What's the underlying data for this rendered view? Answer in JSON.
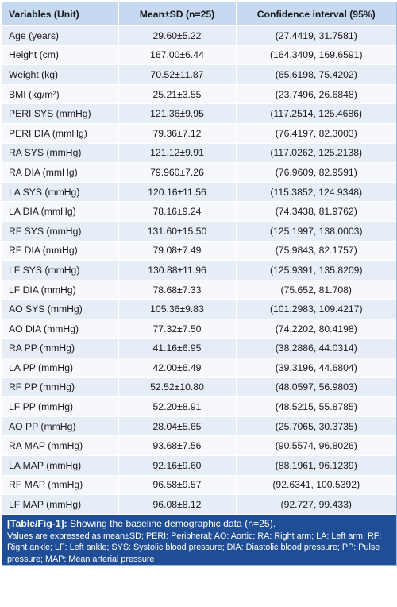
{
  "table": {
    "headers": [
      "Variables (Unit)",
      "Mean±SD (n=25)",
      "Confidence interval (95%)"
    ],
    "rows": [
      [
        "Age (years)",
        "29.60±5.22",
        "(27.4419, 31.7581)"
      ],
      [
        "Height (cm)",
        "167.00±6.44",
        "(164.3409, 169.6591)"
      ],
      [
        "Weight (kg)",
        "70.52±11.87",
        "(65.6198, 75.4202)"
      ],
      [
        "BMI (kg/m²)",
        "25.21±3.55",
        "(23.7496, 26.6848)"
      ],
      [
        "PERI SYS (mmHg)",
        "121.36±9.95",
        "(117.2514, 125.4686)"
      ],
      [
        "PERI DIA (mmHg)",
        "79.36±7.12",
        "(76.4197, 82.3003)"
      ],
      [
        "RA SYS (mmHg)",
        "121.12±9.91",
        "(117.0262, 125.2138)"
      ],
      [
        "RA DIA (mmHg)",
        "79.960±7.26",
        "(76.9609, 82.9591)"
      ],
      [
        "LA SYS (mmHg)",
        "120.16±11.56",
        "(115.3852, 124.9348)"
      ],
      [
        "LA DIA (mmHg)",
        "78.16±9.24",
        "(74.3438, 81.9762)"
      ],
      [
        "RF SYS (mmHg)",
        "131.60±15.50",
        "(125.1997, 138.0003)"
      ],
      [
        "RF DIA (mmHg)",
        "79.08±7.49",
        "(75.9843, 82.1757)"
      ],
      [
        "LF SYS (mmHg)",
        "130.88±11.96",
        "(125.9391, 135.8209)"
      ],
      [
        "LF DIA (mmHg)",
        "78.68±7.33",
        "(75.652, 81.708)"
      ],
      [
        "AO SYS (mmHg)",
        "105.36±9.83",
        "(101.2983, 109.4217)"
      ],
      [
        "AO DIA (mmHg)",
        "77.32±7.50",
        "(74.2202, 80.4198)"
      ],
      [
        "RA PP (mmHg)",
        "41.16±6.95",
        "(38.2886, 44.0314)"
      ],
      [
        "LA PP (mmHg)",
        "42.00±6.49",
        "(39.3196, 44.6804)"
      ],
      [
        "RF PP (mmHg)",
        "52.52±10.80",
        "(48.0597, 56.9803)"
      ],
      [
        "LF PP (mmHg)",
        "52.20±8.91",
        "(48.5215, 55.8785)"
      ],
      [
        "AO PP (mmHg)",
        "28.04±5.65",
        "(25.7065, 30.3735)"
      ],
      [
        "RA MAP (mmHg)",
        "93.68±7.56",
        "(90.5574, 96.8026)"
      ],
      [
        "LA MAP (mmHg)",
        "92.16±9.60",
        "(88.1961, 96.1239)"
      ],
      [
        "RF MAP (mmHg)",
        "96.58±9.57",
        "(92.6341, 100.5392)"
      ],
      [
        "LF MAP (mmHg)",
        "96.08±8.12",
        "(92.727, 99.433)"
      ]
    ]
  },
  "caption": {
    "label": "[Table/Fig-1]:",
    "title": "Showing the baseline demographic data (n=25).",
    "notes": "Values are expressed as mean±SD; PERI: Peripheral; AO: Aortic; RA: Right arm; LA: Left arm; RF: Right ankle; LF: Left ankle; SYS: Systolic blood pressure; DIA: Diastolic blood pressure; PP: Pulse pressure; MAP: Mean arterial pressure"
  },
  "colors": {
    "header_bg": "#c6d9f1",
    "row_odd_bg": "#e6edf7",
    "row_even_bg": "#f6f8fc",
    "caption_bg": "#1f4e96"
  }
}
